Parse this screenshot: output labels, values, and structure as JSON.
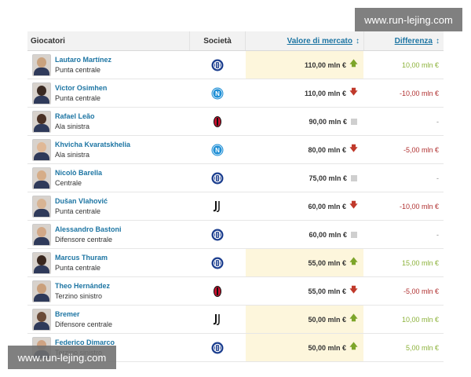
{
  "watermarks": {
    "top_right": "www.run-lejing.com",
    "bottom_left": "www.run-lejing.com"
  },
  "table": {
    "columns": {
      "player": "Giocatori",
      "club": "Società",
      "value": "Valore di mercato",
      "diff": "Differenza"
    },
    "rows": [
      {
        "name": "Lautaro Martínez",
        "role": "Punta centrale",
        "club": "inter-logo",
        "value": "110,00 mln €",
        "trend": "up",
        "diff": "10,00 mln €"
      },
      {
        "name": "Victor Osimhen",
        "role": "Punta centrale",
        "club": "napoli-logo",
        "value": "110,00 mln €",
        "trend": "down",
        "diff": "-10,00 mln €"
      },
      {
        "name": "Rafael Leão",
        "role": "Ala sinistra",
        "club": "milan-logo",
        "value": "90,00 mln €",
        "trend": "flat",
        "diff": "-"
      },
      {
        "name": "Khvicha Kvaratskhelia",
        "role": "Ala sinistra",
        "club": "napoli-logo",
        "value": "80,00 mln €",
        "trend": "down",
        "diff": "-5,00 mln €"
      },
      {
        "name": "Nicolò Barella",
        "role": "Centrale",
        "club": "inter-logo",
        "value": "75,00 mln €",
        "trend": "flat",
        "diff": "-"
      },
      {
        "name": "Dušan Vlahović",
        "role": "Punta centrale",
        "club": "juventus-logo",
        "value": "60,00 mln €",
        "trend": "down",
        "diff": "-10,00 mln €"
      },
      {
        "name": "Alessandro Bastoni",
        "role": "Difensore centrale",
        "club": "inter-logo",
        "value": "60,00 mln €",
        "trend": "flat",
        "diff": "-"
      },
      {
        "name": "Marcus Thuram",
        "role": "Punta centrale",
        "club": "inter-logo",
        "value": "55,00 mln €",
        "trend": "up",
        "diff": "15,00 mln €"
      },
      {
        "name": "Theo Hernández",
        "role": "Terzino sinistro",
        "club": "milan-logo",
        "value": "55,00 mln €",
        "trend": "down",
        "diff": "-5,00 mln €"
      },
      {
        "name": "Bremer",
        "role": "Difensore centrale",
        "club": "juventus-logo",
        "value": "50,00 mln €",
        "trend": "up",
        "diff": "10,00 mln €"
      },
      {
        "name": "Federico Dimarco",
        "role": "Terzino sinistro",
        "club": "inter-logo",
        "value": "50,00 mln €",
        "trend": "up",
        "diff": "5,00 mln €"
      }
    ]
  },
  "colors": {
    "link": "#1d75a3",
    "positive": "#8cb23a",
    "negative": "#b03030",
    "highlight": "#fdf6dc"
  }
}
